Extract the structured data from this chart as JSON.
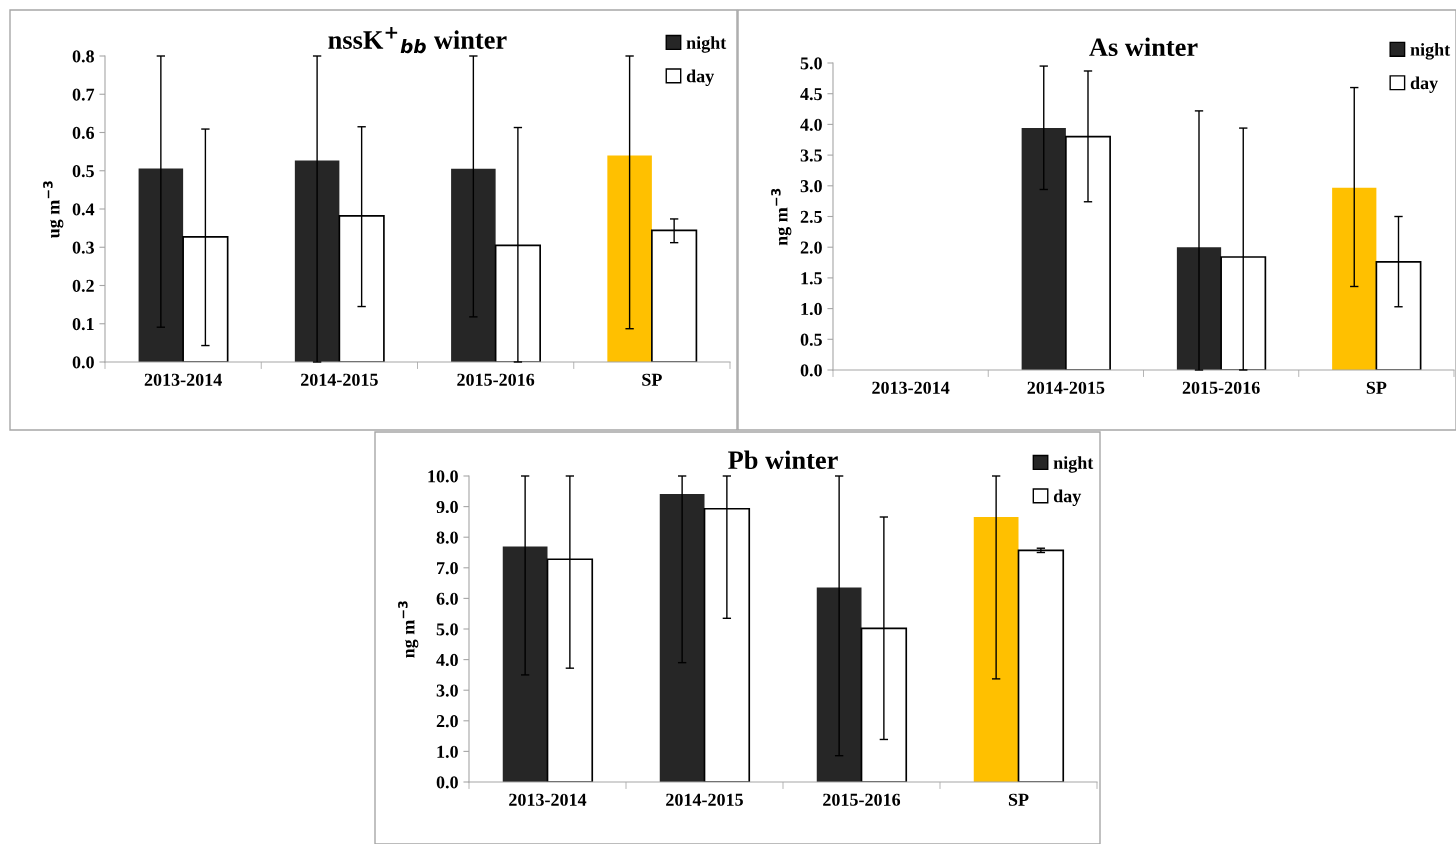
{
  "chart_data": [
    {
      "type": "bar",
      "title": "nssK$^{+}$$_{bb}$ winter",
      "ylabel": "ug m$^{−3}$",
      "categories": [
        "2013-2014",
        "2014-2015",
        "2015-2016",
        "SP"
      ],
      "series": [
        {
          "name": "night",
          "color": "#262626",
          "colors": [
            "#262626",
            "#262626",
            "#262626",
            "#ffc000"
          ],
          "values": [
            0.506,
            0.527,
            0.505,
            0.54
          ],
          "errors": [
            [
              0.091,
              0.8
            ],
            [
              0.0,
              0.8
            ],
            [
              0.118,
              0.8
            ],
            [
              0.087,
              0.8
            ]
          ]
        },
        {
          "name": "day",
          "color": "#ffffff",
          "values": [
            0.327,
            0.382,
            0.305,
            0.344
          ],
          "errors": [
            [
              0.043,
              0.609
            ],
            [
              0.145,
              0.615
            ],
            [
              0.0,
              0.613
            ],
            [
              0.312,
              0.374
            ]
          ]
        }
      ],
      "ylim": [
        0,
        0.8
      ],
      "yticks": [
        {
          "value": 0,
          "label": "0.0"
        },
        0.1,
        0.2,
        0.3,
        0.4,
        0.5,
        0.6,
        0.7,
        0.8
      ],
      "legend": "top right",
      "grid": false
    },
    {
      "type": "bar",
      "title": "As winter",
      "ylabel": "ng m$^{−3}$",
      "categories": [
        "2013-2014",
        "2014-2015",
        "2015-2016",
        "SP"
      ],
      "series": [
        {
          "name": "night",
          "color": "#262626",
          "colors": [
            "#262626",
            "#262626",
            "#262626",
            "#ffc000"
          ],
          "values": [
            null,
            3.94,
            2.0,
            2.97
          ],
          "errors": [
            null,
            [
              2.94,
              4.95
            ],
            [
              0.0,
              4.22
            ],
            [
              1.36,
              4.6
            ]
          ]
        },
        {
          "name": "day",
          "color": "#ffffff",
          "values": [
            null,
            3.8,
            1.84,
            1.76
          ],
          "errors": [
            null,
            [
              2.74,
              4.87
            ],
            [
              0.0,
              3.94
            ],
            [
              1.03,
              2.5
            ]
          ]
        }
      ],
      "ylim": [
        0,
        5
      ],
      "yticks": [
        {
          "value": 0,
          "label": "0.0"
        },
        0.5,
        {
          "value": 1,
          "label": "1.0"
        },
        1.5,
        {
          "value": 2,
          "label": "2.0"
        },
        2.5,
        {
          "value": 3,
          "label": "3.0"
        },
        3.5,
        {
          "value": 4,
          "label": "4.0"
        },
        4.5,
        {
          "value": 5,
          "label": "5.0"
        }
      ],
      "legend": "top right",
      "grid": false
    },
    {
      "type": "bar",
      "title": "Pb winter",
      "ylabel": "ng m$^{−3}$",
      "categories": [
        "2013-2014",
        "2014-2015",
        "2015-2016",
        "SP"
      ],
      "series": [
        {
          "name": "night",
          "color": "#262626",
          "colors": [
            "#262626",
            "#262626",
            "#262626",
            "#ffc000"
          ],
          "values": [
            7.7,
            9.41,
            6.36,
            8.66
          ],
          "errors": [
            [
              3.5,
              10
            ],
            [
              3.9,
              10
            ],
            [
              0.86,
              10
            ],
            [
              3.37,
              10
            ]
          ]
        },
        {
          "name": "day",
          "color": "#ffffff",
          "values": [
            7.28,
            8.93,
            5.02,
            7.57
          ],
          "errors": [
            [
              3.72,
              10
            ],
            [
              5.35,
              10
            ],
            [
              1.39,
              8.66
            ],
            [
              7.5,
              7.64
            ]
          ]
        }
      ],
      "ylim": [
        0,
        10
      ],
      "yticks": [
        {
          "value": 0,
          "label": "0.0"
        },
        {
          "value": 1,
          "label": "1.0"
        },
        {
          "value": 2,
          "label": "2.0"
        },
        {
          "value": 3,
          "label": "3.0"
        },
        {
          "value": 4,
          "label": "4.0"
        },
        {
          "value": 5,
          "label": "5.0"
        },
        {
          "value": 6,
          "label": "6.0"
        },
        {
          "value": 7,
          "label": "7.0"
        },
        {
          "value": 8,
          "label": "8.0"
        },
        {
          "value": 9,
          "label": "9.0"
        },
        {
          "value": 10,
          "label": "10.0"
        }
      ],
      "legend": "top right",
      "grid": false
    }
  ]
}
